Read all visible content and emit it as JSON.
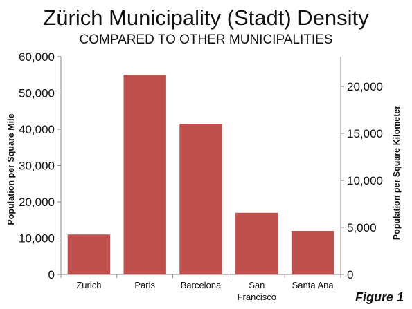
{
  "title": "Zürich Municipality (Stadt) Density",
  "subtitle": "COMPARED TO OTHER MUNICIPALITIES",
  "figure_label": "Figure 1",
  "colors": {
    "bar": "#c0504d",
    "axis": "#888888"
  },
  "chart_data": {
    "type": "bar",
    "categories": [
      "Zurich",
      "Paris",
      "Barcelona",
      "San\nFrancisco",
      "Santa Ana"
    ],
    "values": [
      11000,
      55000,
      41500,
      17000,
      12000
    ],
    "ylabel": "Population per Square Mile",
    "ylim": [
      0,
      60000
    ],
    "yticks": [
      0,
      10000,
      20000,
      30000,
      40000,
      50000,
      60000
    ],
    "ytick_labels": [
      "0",
      "10,000",
      "20,000",
      "30,000",
      "40,000",
      "50,000",
      "60,000"
    ],
    "y2label": "Population per Square Kilometer",
    "y2lim": [
      0,
      23166
    ],
    "y2ticks": [
      0,
      5000,
      10000,
      15000,
      20000
    ],
    "y2tick_labels": [
      "0",
      "5,000",
      "10,000",
      "15,000",
      "20,000"
    ],
    "grid": false,
    "legend": "none"
  }
}
